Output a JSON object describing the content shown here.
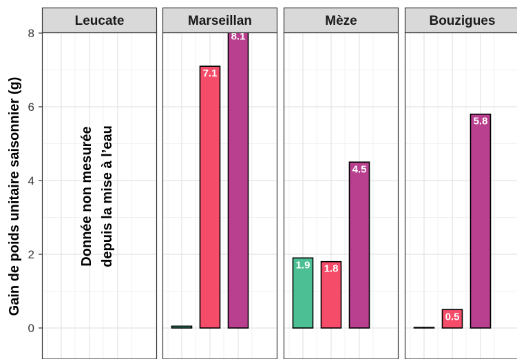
{
  "chart_data": {
    "type": "bar",
    "ylabel": "Gain de poids unitaire saisonnier (g)",
    "ylim": [
      0,
      8.5
    ],
    "yticks": [
      0,
      2,
      4,
      6,
      8
    ],
    "grid": true,
    "colors": [
      "#4dbf95",
      "#f54c6a",
      "#b8408f"
    ],
    "annotation": {
      "panel": "Leucate",
      "lines": [
        "Donnée non mesurée",
        "depuis la mise à l’eau"
      ]
    },
    "panels": [
      {
        "name": "Leucate",
        "values": [
          null,
          null,
          null
        ],
        "labels": [
          "",
          "",
          ""
        ]
      },
      {
        "name": "Marseillan",
        "values": [
          0.05,
          7.1,
          8.1
        ],
        "labels": [
          "",
          "7.1",
          "8.1"
        ]
      },
      {
        "name": "Mèze",
        "values": [
          1.9,
          1.8,
          4.5
        ],
        "labels": [
          "1.9",
          "1.8",
          "4.5"
        ]
      },
      {
        "name": "Bouzigues",
        "values": [
          0.0,
          0.5,
          5.8
        ],
        "labels": [
          "",
          "0.5",
          "5.8"
        ]
      }
    ]
  }
}
